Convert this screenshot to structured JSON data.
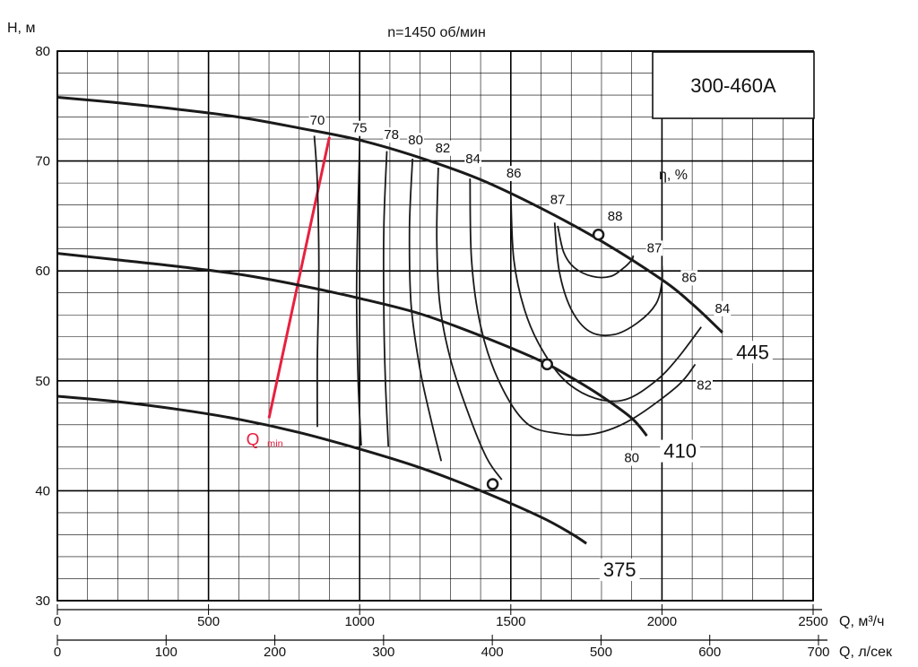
{
  "chart_data": {
    "type": "line",
    "title": "n=1450 об/мин",
    "model": "300-460A",
    "ylabel": "H, м",
    "xlabel": "Q, м³/ч",
    "x2label": "Q, л/сек",
    "eff_label": "η, %",
    "qmin_label": "Q",
    "qmin_sub": "min",
    "ylim": [
      30,
      80
    ],
    "xlim": [
      0,
      2500
    ],
    "x2lim": [
      0,
      700
    ],
    "yticks": [
      30,
      40,
      50,
      60,
      70,
      80
    ],
    "xticks": [
      0,
      500,
      1000,
      1500,
      2000,
      2500
    ],
    "x2ticks": [
      0,
      100,
      200,
      300,
      400,
      500,
      600,
      700
    ],
    "grid": true,
    "colors": {
      "curve": "#1a1a1a",
      "qmin": "#e8203f",
      "grid": "#000000"
    },
    "series": [
      {
        "name": "445",
        "x": [
          0,
          200,
          400,
          600,
          800,
          1000,
          1200,
          1400,
          1600,
          1800,
          2000,
          2100,
          2200
        ],
        "y": [
          75.8,
          75.3,
          74.7,
          74.0,
          73.0,
          71.9,
          70.3,
          68.3,
          65.7,
          62.7,
          59.2,
          57.0,
          54.4
        ]
      },
      {
        "name": "410",
        "x": [
          0,
          200,
          400,
          600,
          800,
          1000,
          1200,
          1400,
          1600,
          1700,
          1800,
          1900,
          1950
        ],
        "y": [
          61.6,
          61.0,
          60.4,
          59.7,
          58.7,
          57.5,
          56.1,
          54.1,
          51.8,
          50.3,
          48.6,
          46.6,
          45.0
        ]
      },
      {
        "name": "375",
        "x": [
          0,
          200,
          400,
          600,
          800,
          1000,
          1200,
          1400,
          1600,
          1700,
          1750
        ],
        "y": [
          48.6,
          48.1,
          47.4,
          46.5,
          45.3,
          43.8,
          42.1,
          40.0,
          37.6,
          36.1,
          35.2
        ]
      }
    ],
    "bep_points": [
      {
        "x": 1790,
        "y": 63.3
      },
      {
        "x": 1620,
        "y": 51.5
      },
      {
        "x": 1440,
        "y": 40.6
      }
    ],
    "qmin_line": {
      "x": [
        700,
        900
      ],
      "y": [
        46.6,
        72.2
      ]
    },
    "efficiency_contours": [
      {
        "label": "70",
        "x": [
          850,
          860,
          865,
          860,
          860
        ],
        "y": [
          72.3,
          68.0,
          60.0,
          52.0,
          45.8
        ]
      },
      {
        "label": "75",
        "x": [
          1000,
          995,
          990,
          995,
          1005
        ],
        "y": [
          71.6,
          66.0,
          58.0,
          50.0,
          44.1
        ]
      },
      {
        "label": "78",
        "x": [
          1090,
          1080,
          1080,
          1085,
          1095
        ],
        "y": [
          70.9,
          64.0,
          56.0,
          50.0,
          44.0
        ]
      },
      {
        "label": "80",
        "x": [
          1175,
          1165,
          1170,
          1200,
          1240,
          1270
        ],
        "y": [
          70.2,
          64.0,
          57.0,
          51.0,
          46.0,
          42.7
        ]
      },
      {
        "label": "82",
        "x": [
          1260,
          1255,
          1265,
          1300,
          1360,
          1420,
          1470
        ],
        "y": [
          69.4,
          63.0,
          57.0,
          52.0,
          47.0,
          43.0,
          41.0
        ]
      },
      {
        "label": "84",
        "x": [
          1365,
          1370,
          1400,
          1460,
          1550,
          1660,
          1780,
          1900,
          2050,
          2110
        ],
        "y": [
          68.4,
          61.0,
          55.0,
          50.0,
          46.2,
          45.2,
          45.2,
          46.5,
          49.5,
          51.5
        ]
      },
      {
        "label": "86",
        "x": [
          1500,
          1510,
          1545,
          1600,
          1680,
          1780,
          1880,
          1980,
          2050,
          2130
        ],
        "y": [
          66.8,
          61.0,
          56.5,
          53.0,
          50.0,
          48.4,
          48.3,
          50.0,
          52.0,
          54.9
        ]
      },
      {
        "label": "87",
        "x": [
          1645,
          1660,
          1700,
          1760,
          1840,
          1920,
          1980,
          2000,
          2000
        ],
        "y": [
          64.4,
          60.0,
          56.5,
          54.5,
          54.2,
          55.3,
          57.0,
          59.0,
          60.5
        ]
      },
      {
        "label": "88",
        "x": [
          1655,
          1675,
          1710,
          1770,
          1830,
          1870,
          1900,
          1905
        ],
        "y": [
          64.1,
          61.7,
          60.3,
          59.5,
          59.5,
          60.2,
          61.0,
          61.4
        ]
      }
    ],
    "efficiency_labels": [
      {
        "text": "70",
        "x": 860,
        "y": 73.3
      },
      {
        "text": "75",
        "x": 1000,
        "y": 72.6
      },
      {
        "text": "78",
        "x": 1105,
        "y": 72.0
      },
      {
        "text": "80",
        "x": 1185,
        "y": 71.5
      },
      {
        "text": "82",
        "x": 1275,
        "y": 70.8
      },
      {
        "text": "84",
        "x": 1375,
        "y": 69.8
      },
      {
        "text": "86",
        "x": 1510,
        "y": 68.5
      },
      {
        "text": "87",
        "x": 1655,
        "y": 66.1
      },
      {
        "text": "88",
        "x": 1845,
        "y": 64.6
      },
      {
        "text": "87",
        "x": 1975,
        "y": 61.7
      },
      {
        "text": "86",
        "x": 2090,
        "y": 59.0
      },
      {
        "text": "84",
        "x": 2200,
        "y": 56.2
      },
      {
        "text": "82",
        "x": 2140,
        "y": 49.2
      },
      {
        "text": "80",
        "x": 1900,
        "y": 42.6
      }
    ],
    "curve_labels": [
      {
        "text": "445",
        "x": 2300,
        "y": 52.0
      },
      {
        "text": "410",
        "x": 2060,
        "y": 43.0
      },
      {
        "text": "375",
        "x": 1860,
        "y": 32.2
      }
    ]
  }
}
